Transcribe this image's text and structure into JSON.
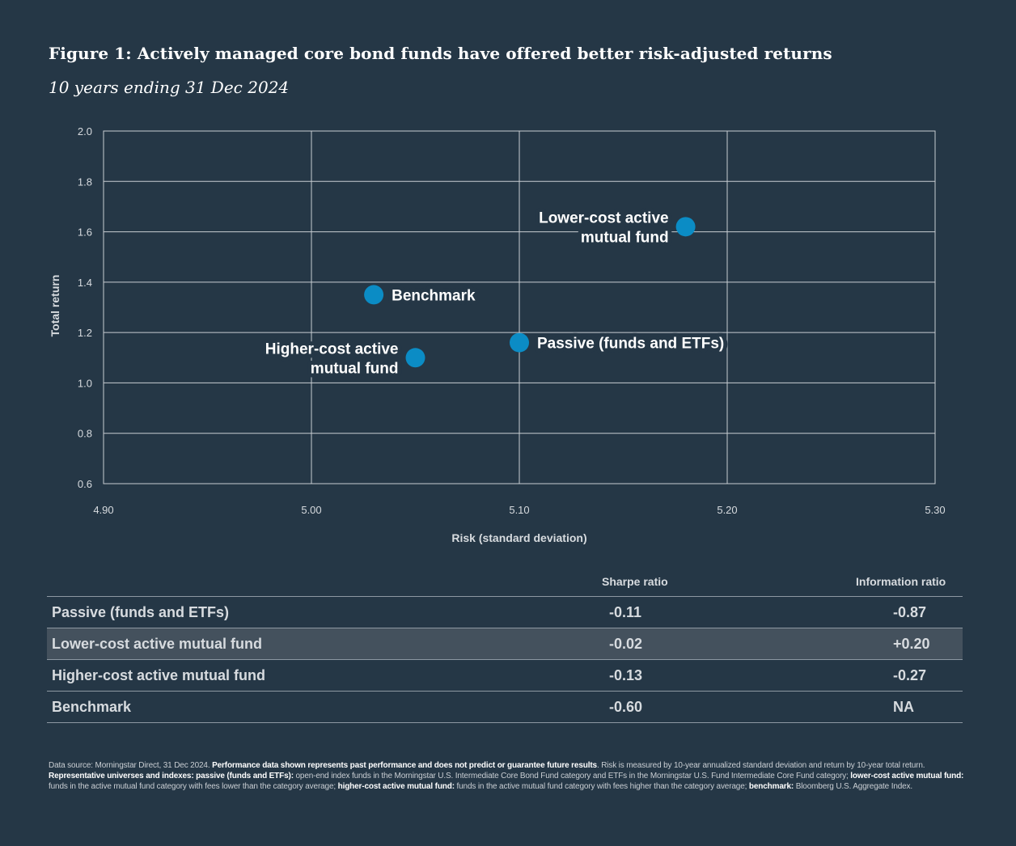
{
  "title": "Figure 1: Actively managed core bond funds have offered better risk-adjusted returns",
  "subtitle": "10 years ending 31 Dec 2024",
  "colors": {
    "background": "#253746",
    "point": "#0b8cc5",
    "grid": "#c8cdd2"
  },
  "chart_data": {
    "type": "scatter",
    "xlabel": "Risk (standard deviation)",
    "ylabel": "Total return",
    "xlim": [
      4.9,
      5.3
    ],
    "ylim": [
      0.6,
      2.0
    ],
    "xticks": [
      4.9,
      5.0,
      5.1,
      5.2,
      5.3
    ],
    "yticks": [
      0.6,
      0.8,
      1.0,
      1.2,
      1.4,
      1.6,
      1.8,
      2.0
    ],
    "xtick_labels": [
      "4.90",
      "5.00",
      "5.10",
      "5.20",
      "5.30"
    ],
    "ytick_labels": [
      "0.6",
      "0.8",
      "1.0",
      "1.2",
      "1.4",
      "1.6",
      "1.8",
      "2.0"
    ],
    "grid": true,
    "points": [
      {
        "label_lines": [
          "Lower-cost active",
          "mutual fund"
        ],
        "x": 5.18,
        "y": 1.62,
        "label_side": "left"
      },
      {
        "label_lines": [
          "Benchmark"
        ],
        "x": 5.03,
        "y": 1.35,
        "label_side": "right"
      },
      {
        "label_lines": [
          "Passive (funds and ETFs)"
        ],
        "x": 5.1,
        "y": 1.16,
        "label_side": "right"
      },
      {
        "label_lines": [
          "Higher-cost active",
          "mutual fund"
        ],
        "x": 5.05,
        "y": 1.1,
        "label_side": "left"
      }
    ]
  },
  "table": {
    "headers": {
      "sharpe": "Sharpe ratio",
      "info": "Information ratio"
    },
    "rows": [
      {
        "label": "Passive (funds and ETFs)",
        "sharpe": "-0.11",
        "info": "-0.87"
      },
      {
        "label": "Lower-cost active mutual fund",
        "sharpe": "-0.02",
        "info": "+0.20"
      },
      {
        "label": "Higher-cost active mutual fund",
        "sharpe": "-0.13",
        "info": "-0.27"
      },
      {
        "label": "Benchmark",
        "sharpe": "-0.60",
        "info": "NA"
      }
    ]
  },
  "footnote": {
    "p1": "Data source: Morningstar Direct, 31 Dec 2024. ",
    "b1": "Performance data shown represents past performance and does not predict or guarantee future results",
    "p2": ". Risk is measured by 10-year annualized standard deviation and return by 10-year total return. ",
    "b2": "Representative universes and indexes: passive (funds and ETFs):",
    "p3": " open-end index funds in the Morningstar U.S. Intermediate Core Bond Fund category and ETFs in the Morningstar U.S. Fund Intermediate Core Fund category; ",
    "b3": "lower-cost active mutual fund:",
    "p4": " funds in the active mutual fund category with fees lower than the category average; ",
    "b4": "higher-cost active mutual fund:",
    "p5": " funds in the active mutual fund category with fees higher than the category average; ",
    "b5": "benchmark:",
    "p6": " Bloomberg U.S. Aggregate Index."
  }
}
